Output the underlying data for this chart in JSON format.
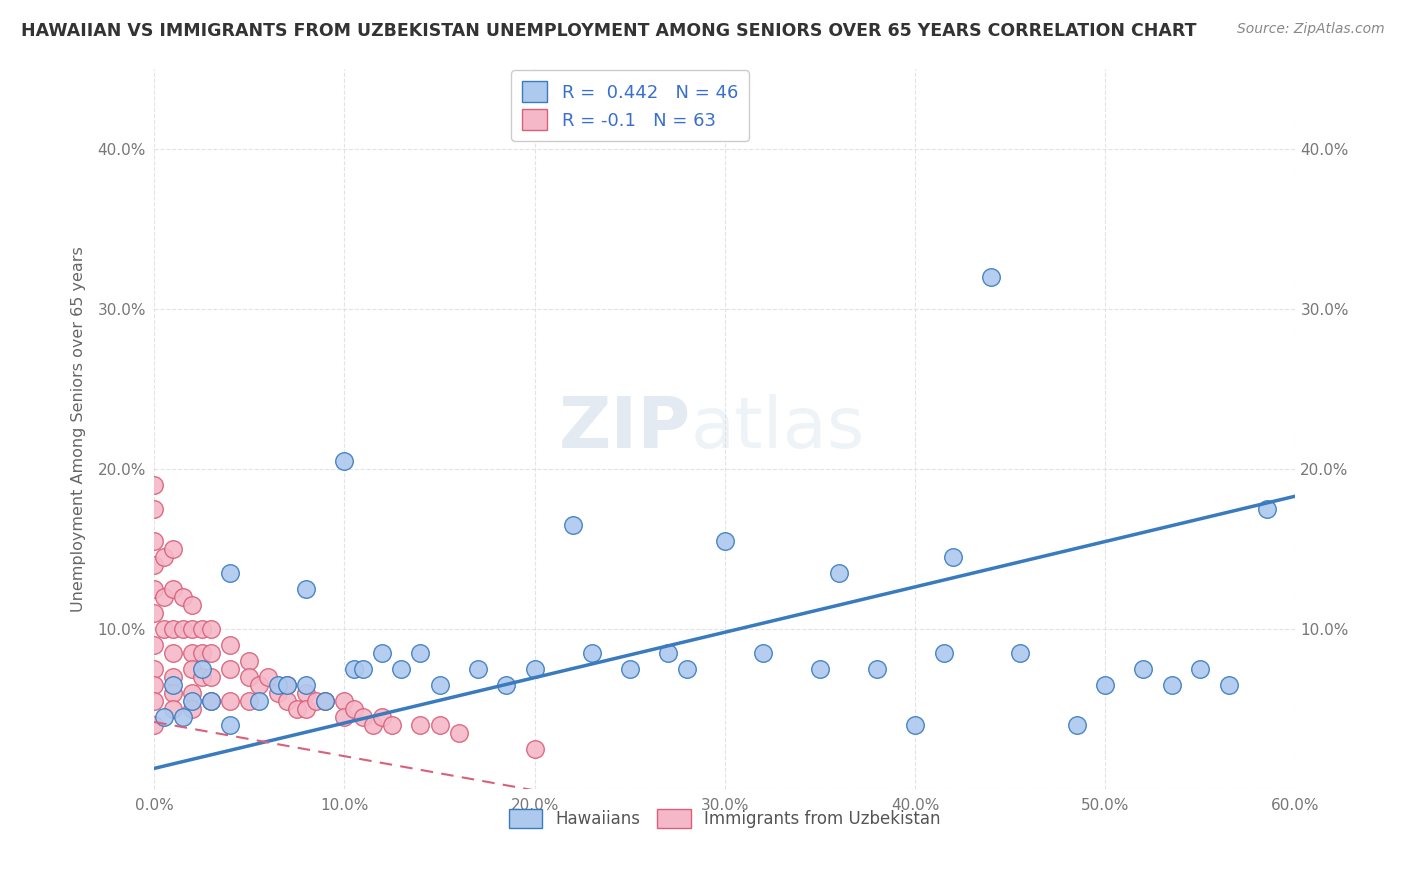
{
  "title": "HAWAIIAN VS IMMIGRANTS FROM UZBEKISTAN UNEMPLOYMENT AMONG SENIORS OVER 65 YEARS CORRELATION CHART",
  "source": "Source: ZipAtlas.com",
  "ylabel": "Unemployment Among Seniors over 65 years",
  "xlim": [
    0.0,
    0.62
  ],
  "ylim": [
    -0.02,
    0.46
  ],
  "plot_xlim": [
    0.0,
    0.6
  ],
  "plot_ylim": [
    0.0,
    0.45
  ],
  "xtick_vals": [
    0.0,
    0.1,
    0.2,
    0.3,
    0.4,
    0.5,
    0.6
  ],
  "xtick_labels": [
    "0.0%",
    "10.0%",
    "20.0%",
    "30.0%",
    "40.0%",
    "50.0%",
    "60.0%"
  ],
  "ytick_vals": [
    0.0,
    0.1,
    0.2,
    0.3,
    0.4
  ],
  "ytick_labels": [
    "",
    "10.0%",
    "20.0%",
    "30.0%",
    "40.0%"
  ],
  "hawaiians_R": 0.442,
  "hawaiians_N": 46,
  "uzbekistan_R": -0.1,
  "uzbekistan_N": 63,
  "hawaii_color": "#adc9ee",
  "hawaii_line_color": "#3a7bbf",
  "uzbekistan_color": "#f5b8c8",
  "uzbekistan_line_color": "#d9607a",
  "watermark_zip": "ZIP",
  "watermark_atlas": "atlas",
  "background_color": "#ffffff",
  "hawaiians_x": [
    0.005,
    0.01,
    0.015,
    0.02,
    0.025,
    0.03,
    0.04,
    0.04,
    0.055,
    0.065,
    0.07,
    0.08,
    0.08,
    0.09,
    0.1,
    0.105,
    0.11,
    0.12,
    0.13,
    0.14,
    0.15,
    0.17,
    0.185,
    0.2,
    0.22,
    0.23,
    0.25,
    0.27,
    0.28,
    0.3,
    0.32,
    0.35,
    0.36,
    0.38,
    0.4,
    0.415,
    0.42,
    0.44,
    0.455,
    0.485,
    0.5,
    0.52,
    0.535,
    0.55,
    0.565,
    0.585
  ],
  "hawaiians_y": [
    0.045,
    0.065,
    0.045,
    0.055,
    0.075,
    0.055,
    0.04,
    0.135,
    0.055,
    0.065,
    0.065,
    0.065,
    0.125,
    0.055,
    0.205,
    0.075,
    0.075,
    0.085,
    0.075,
    0.085,
    0.065,
    0.075,
    0.065,
    0.075,
    0.165,
    0.085,
    0.075,
    0.085,
    0.075,
    0.155,
    0.085,
    0.075,
    0.135,
    0.075,
    0.04,
    0.085,
    0.145,
    0.32,
    0.085,
    0.04,
    0.065,
    0.075,
    0.065,
    0.075,
    0.065,
    0.175
  ],
  "uzbekistan_x": [
    0.0,
    0.0,
    0.0,
    0.0,
    0.0,
    0.0,
    0.0,
    0.0,
    0.0,
    0.0,
    0.0,
    0.005,
    0.005,
    0.005,
    0.01,
    0.01,
    0.01,
    0.01,
    0.01,
    0.01,
    0.01,
    0.015,
    0.015,
    0.02,
    0.02,
    0.02,
    0.02,
    0.02,
    0.02,
    0.025,
    0.025,
    0.025,
    0.03,
    0.03,
    0.03,
    0.03,
    0.04,
    0.04,
    0.04,
    0.05,
    0.05,
    0.05,
    0.055,
    0.06,
    0.065,
    0.07,
    0.07,
    0.075,
    0.08,
    0.08,
    0.085,
    0.09,
    0.1,
    0.1,
    0.105,
    0.11,
    0.115,
    0.12,
    0.125,
    0.14,
    0.15,
    0.16,
    0.2
  ],
  "uzbekistan_y": [
    0.19,
    0.175,
    0.155,
    0.14,
    0.125,
    0.11,
    0.09,
    0.075,
    0.065,
    0.055,
    0.04,
    0.145,
    0.12,
    0.1,
    0.15,
    0.125,
    0.1,
    0.085,
    0.07,
    0.06,
    0.05,
    0.12,
    0.1,
    0.115,
    0.1,
    0.085,
    0.075,
    0.06,
    0.05,
    0.1,
    0.085,
    0.07,
    0.1,
    0.085,
    0.07,
    0.055,
    0.09,
    0.075,
    0.055,
    0.08,
    0.07,
    0.055,
    0.065,
    0.07,
    0.06,
    0.065,
    0.055,
    0.05,
    0.06,
    0.05,
    0.055,
    0.055,
    0.055,
    0.045,
    0.05,
    0.045,
    0.04,
    0.045,
    0.04,
    0.04,
    0.04,
    0.035,
    0.025
  ],
  "hawaii_trend_x": [
    0.0,
    0.6
  ],
  "hawaii_trend_y": [
    0.013,
    0.183
  ],
  "uzbek_trend_x": [
    0.0,
    0.22
  ],
  "uzbek_trend_y": [
    0.042,
    -0.005
  ]
}
